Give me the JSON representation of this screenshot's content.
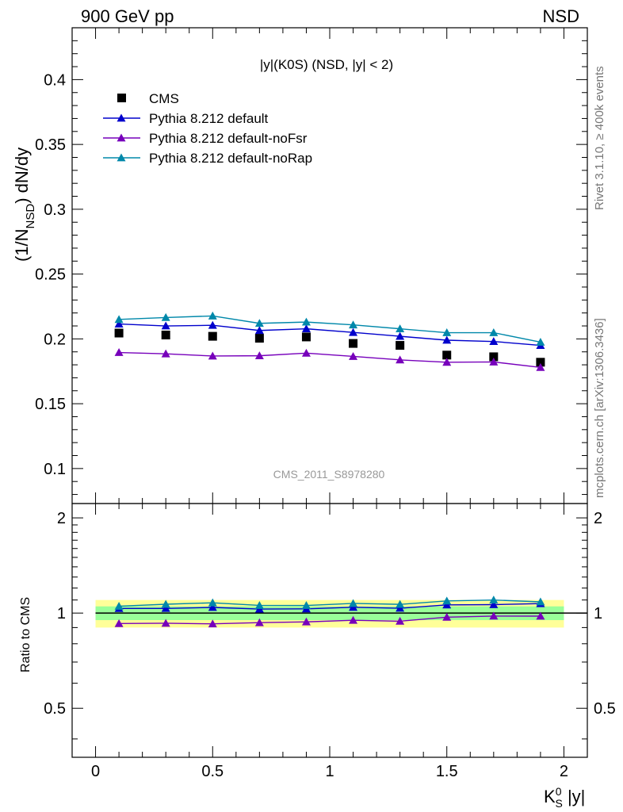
{
  "header": {
    "left": "900 GeV pp",
    "right": "NSD"
  },
  "side_labels": {
    "rivet": "Rivet 3.1.10, ≥ 400k events",
    "mcplots": "mcplots.cern.ch [arXiv:1306.3436]"
  },
  "chart_data": {
    "type": "line",
    "title": "|y|(K0S) (NSD, |y| < 2)",
    "watermark": "CMS_2011_S8978280",
    "xlabel_main": "K",
    "xlabel_sup": "0",
    "xlabel_sub": "S",
    "xlabel_rest": " |y|",
    "ylabel_main": "(1/N",
    "ylabel_sub": "NSD",
    "ylabel_rest": ") dN/dy",
    "ratio_ylabel": "Ratio to CMS",
    "xlim": [
      -0.1,
      2.1
    ],
    "ylim": [
      0.073,
      0.44
    ],
    "ratio_ylim": [
      0.35,
      2.22
    ],
    "x_ticks": [
      "0",
      "0.5",
      "1",
      "1.5",
      "2"
    ],
    "y_ticks": [
      "0.1",
      "0.15",
      "0.2",
      "0.25",
      "0.3",
      "0.35",
      "0.4"
    ],
    "ratio_ticks": [
      "0.5",
      "1",
      "2"
    ],
    "x": [
      0.1,
      0.3,
      0.5,
      0.7,
      0.9,
      1.1,
      1.3,
      1.5,
      1.7,
      1.9
    ],
    "band_outer": [
      0.9,
      1.1
    ],
    "band_inner": [
      0.95,
      1.05
    ],
    "legend": [
      "CMS",
      "Pythia 8.212 default",
      "Pythia 8.212 default-noFsr",
      "Pythia 8.212 default-noRap"
    ],
    "series": [
      {
        "name": "CMS",
        "color": "#000000",
        "marker": "square",
        "values": [
          0.2045,
          0.203,
          0.202,
          0.2005,
          0.2015,
          0.1965,
          0.195,
          0.1875,
          0.1862,
          0.182
        ]
      },
      {
        "name": "Pythia 8.212 default",
        "color": "#0000cc",
        "marker": "triangle",
        "values": [
          0.2115,
          0.21,
          0.2105,
          0.2065,
          0.2078,
          0.205,
          0.202,
          0.199,
          0.198,
          0.195
        ]
      },
      {
        "name": "Pythia 8.212 default-noFsr",
        "color": "#7700bb",
        "marker": "triangle",
        "values": [
          0.1895,
          0.1885,
          0.1868,
          0.187,
          0.189,
          0.1865,
          0.1838,
          0.182,
          0.1822,
          0.178
        ]
      },
      {
        "name": "Pythia 8.212 default-noRap",
        "color": "#0088aa",
        "marker": "triangle",
        "values": [
          0.215,
          0.2165,
          0.2177,
          0.212,
          0.213,
          0.2108,
          0.2078,
          0.2048,
          0.2048,
          0.1975
        ]
      }
    ]
  }
}
